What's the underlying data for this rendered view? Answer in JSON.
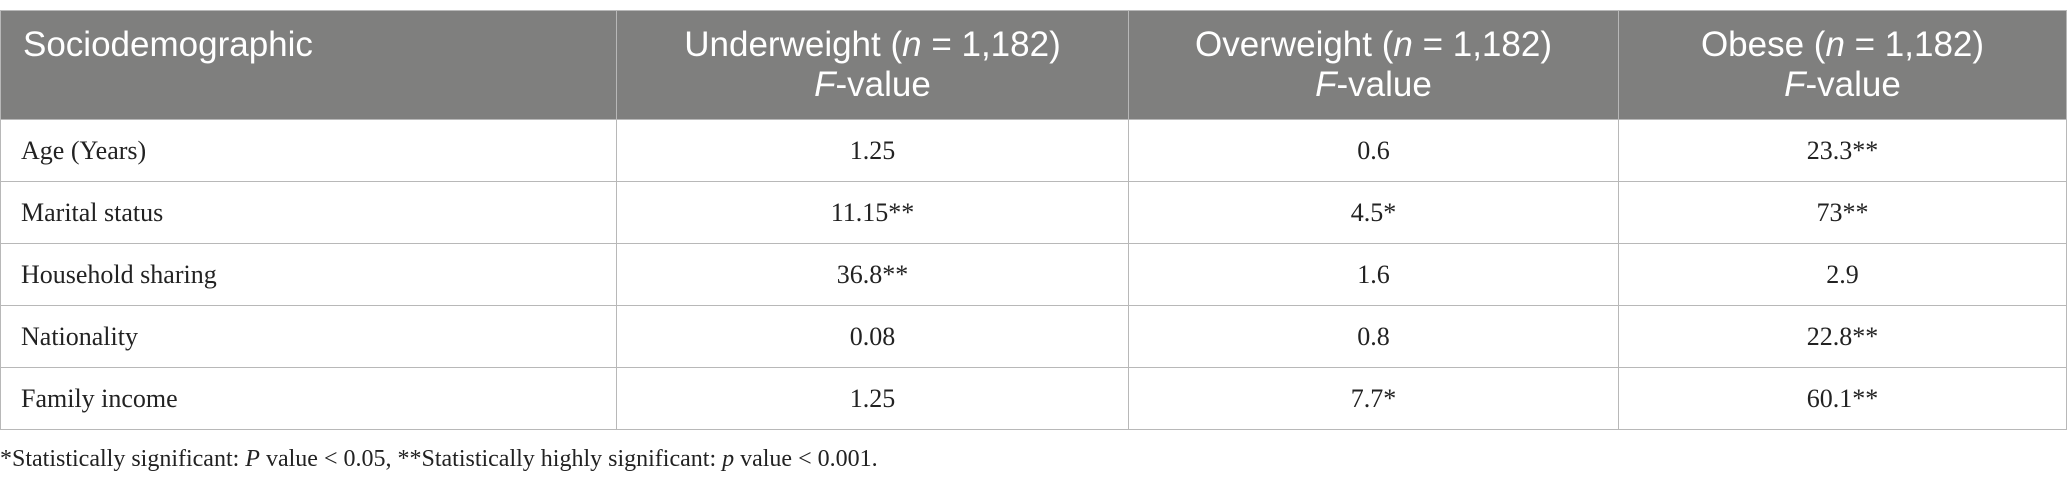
{
  "table": {
    "header": [
      [
        [
          "Sociodemographic"
        ]
      ],
      [
        [
          "Underweight (",
          "n",
          " = 1,182)"
        ],
        [
          "",
          "F",
          "-value"
        ]
      ],
      [
        [
          "Overweight (",
          "n",
          " = 1,182)"
        ],
        [
          "",
          "F",
          "-value"
        ]
      ],
      [
        [
          "Obese (",
          "n",
          " = 1,182)"
        ],
        [
          "",
          "F",
          "-value"
        ]
      ]
    ],
    "rows": [
      [
        "Age (Years)",
        "1.25",
        "0.6",
        "23.3**"
      ],
      [
        "Marital status",
        "11.15**",
        "4.5*",
        "73**"
      ],
      [
        "Household sharing",
        "36.8**",
        "1.6",
        "2.9"
      ],
      [
        "Nationality",
        "0.08",
        "0.8",
        "22.8**"
      ],
      [
        "Family income",
        "1.25",
        "7.7*",
        "60.1**"
      ]
    ]
  },
  "footnote": [
    "*Statistically significant: ",
    "P",
    " value < 0.05, **Statistically highly significant: ",
    "p",
    " value < 0.001."
  ]
}
